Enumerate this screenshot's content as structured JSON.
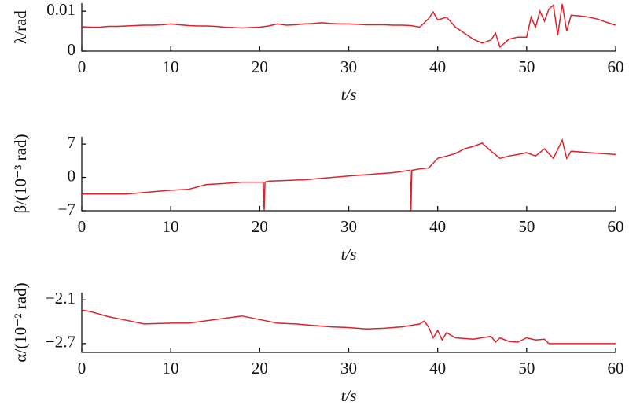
{
  "chart_data": [
    {
      "type": "line",
      "ylabel": "λ/rad",
      "xlabel": "t/s",
      "x": [
        0,
        1,
        2,
        3,
        4,
        5,
        6,
        7,
        8,
        9,
        10,
        11,
        12,
        13,
        14,
        15,
        16,
        17,
        18,
        19,
        20,
        21,
        22,
        23,
        24,
        25,
        26,
        27,
        28,
        29,
        30,
        31,
        32,
        33,
        34,
        35,
        36,
        37,
        38,
        39,
        39.5,
        40,
        41,
        42,
        43,
        44,
        45,
        46,
        46.5,
        47,
        48,
        49,
        50,
        50.5,
        51,
        51.5,
        52,
        52.5,
        53,
        53.5,
        54,
        54.5,
        55,
        56,
        57,
        58,
        59,
        60
      ],
      "series": [
        {
          "name": "λ",
          "color": "#e0202a",
          "values": [
            0.0061,
            0.006,
            0.006,
            0.0062,
            0.0062,
            0.0063,
            0.0064,
            0.0065,
            0.0065,
            0.0066,
            0.0068,
            0.0066,
            0.0064,
            0.0063,
            0.0063,
            0.0062,
            0.006,
            0.0059,
            0.0058,
            0.0059,
            0.006,
            0.0063,
            0.0068,
            0.0065,
            0.0066,
            0.0068,
            0.0069,
            0.0071,
            0.0069,
            0.0068,
            0.0068,
            0.0067,
            0.0066,
            0.0066,
            0.0066,
            0.0065,
            0.0065,
            0.0064,
            0.006,
            0.0082,
            0.0098,
            0.0078,
            0.0085,
            0.006,
            0.0045,
            0.003,
            0.002,
            0.0028,
            0.0045,
            0.001,
            0.003,
            0.0035,
            0.0035,
            0.0085,
            0.006,
            0.01,
            0.0075,
            0.0105,
            0.0115,
            0.004,
            0.0118,
            0.005,
            0.009,
            0.0088,
            0.0085,
            0.008,
            0.0072,
            0.0065
          ]
        }
      ],
      "xlim": [
        0,
        60
      ],
      "xticks": [
        0,
        10,
        20,
        30,
        40,
        50,
        60
      ],
      "ylim": [
        0,
        0.012
      ],
      "yticks": [
        0,
        0.01
      ]
    },
    {
      "type": "line",
      "ylabel": "β/(10⁻³ rad)",
      "xlabel": "t/s",
      "x": [
        0,
        5,
        10,
        12,
        14,
        16,
        18,
        20,
        20.4,
        20.5,
        20.6,
        21,
        25,
        30,
        35,
        36.9,
        37,
        37.1,
        38,
        39,
        40,
        41,
        42,
        43,
        44,
        45,
        46,
        47,
        48,
        49,
        50,
        51,
        52,
        53,
        54,
        54.5,
        55,
        57,
        60
      ],
      "series": [
        {
          "name": "β",
          "color": "#e0202a",
          "values": [
            -3.5,
            -3.5,
            -2.7,
            -2.5,
            -1.5,
            -1.3,
            -1,
            -1,
            -1,
            -7,
            -1,
            -0.8,
            -0.5,
            0.3,
            1,
            1.5,
            -7,
            1.5,
            1.8,
            2,
            4,
            4.5,
            5,
            6,
            6.5,
            7.2,
            5.5,
            4,
            4.5,
            4.8,
            5.2,
            4.5,
            6,
            4,
            7.8,
            4,
            5.5,
            5.2,
            4.8
          ]
        }
      ],
      "xlim": [
        0,
        60
      ],
      "xticks": [
        0,
        10,
        20,
        30,
        40,
        50,
        60
      ],
      "ylim": [
        -7,
        8.5
      ],
      "yticks": [
        {
          "value": -7,
          "label": "−7"
        },
        0,
        7
      ]
    },
    {
      "type": "line",
      "ylabel": "α/(10⁻² rad)",
      "xlabel": "t/s",
      "x": [
        0,
        1,
        3,
        5,
        7,
        10,
        12,
        15,
        18,
        20,
        22,
        24,
        26,
        28,
        30,
        32,
        34,
        36,
        38,
        38.5,
        39,
        39.5,
        40,
        40.5,
        41,
        42,
        44,
        46,
        46.5,
        47,
        48,
        49,
        50,
        51,
        52,
        52.5,
        60
      ],
      "series": [
        {
          "name": "α",
          "color": "#e0202a",
          "values": [
            -2.24,
            -2.26,
            -2.33,
            -2.38,
            -2.43,
            -2.42,
            -2.42,
            -2.37,
            -2.32,
            -2.37,
            -2.42,
            -2.43,
            -2.45,
            -2.47,
            -2.48,
            -2.5,
            -2.49,
            -2.47,
            -2.43,
            -2.39,
            -2.48,
            -2.62,
            -2.52,
            -2.65,
            -2.55,
            -2.62,
            -2.64,
            -2.6,
            -2.68,
            -2.62,
            -2.67,
            -2.68,
            -2.62,
            -2.65,
            -2.64,
            -2.7,
            -2.7
          ]
        }
      ],
      "xlim": [
        0,
        60
      ],
      "xticks": [
        0,
        10,
        20,
        30,
        40,
        50,
        60
      ],
      "ylim": [
        -2.82,
        -2.0
      ],
      "yticks": [
        {
          "value": -2.7,
          "label": "−2.7"
        },
        {
          "value": -2.1,
          "label": "−2.1"
        }
      ]
    }
  ]
}
